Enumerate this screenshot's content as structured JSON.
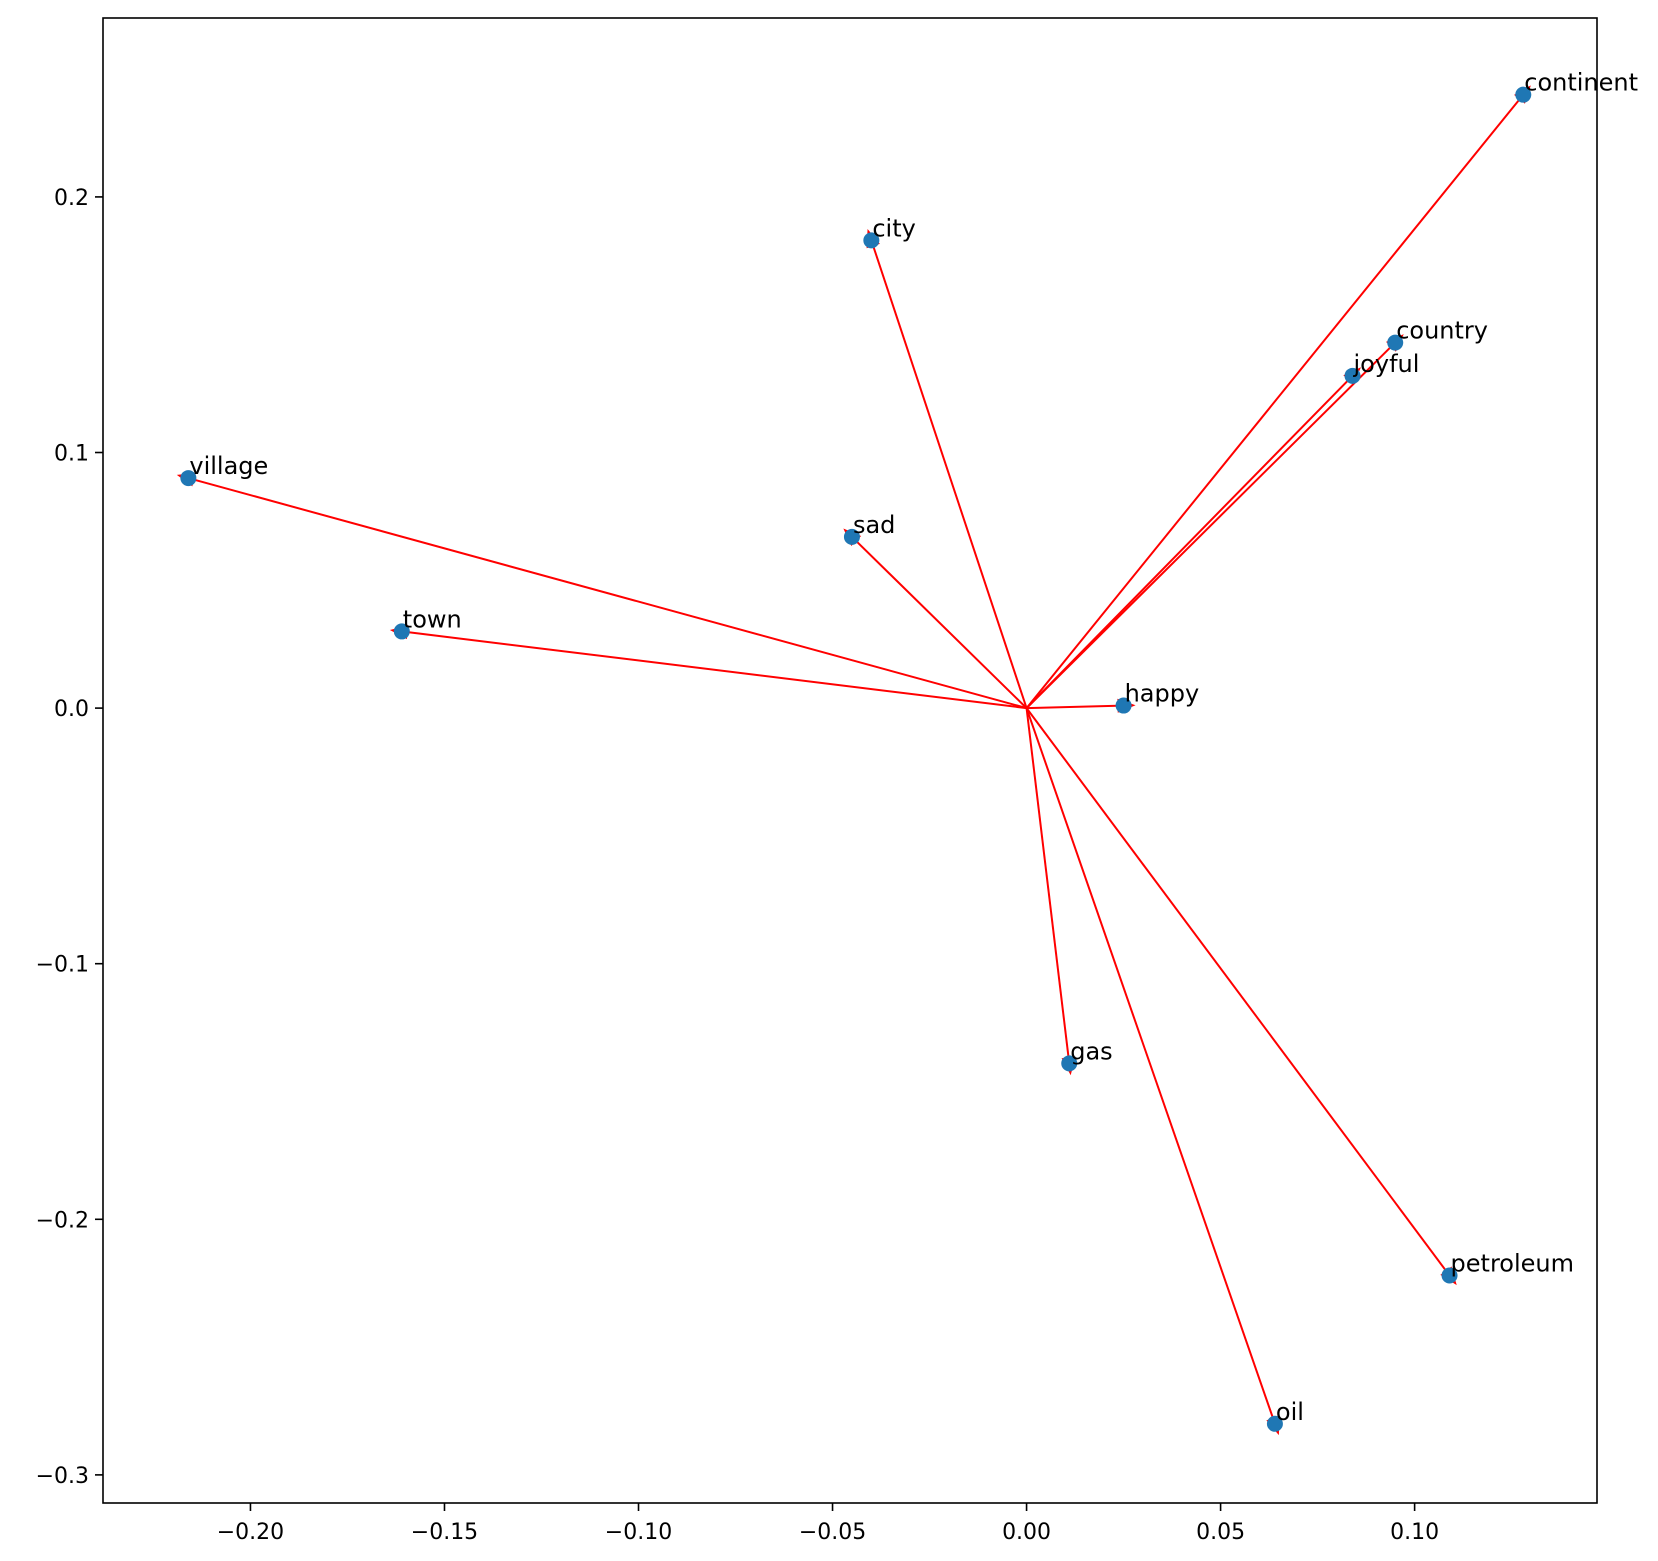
{
  "chart_data": {
    "type": "scatter",
    "title": "",
    "xlabel": "",
    "ylabel": "",
    "xlim": [
      -0.238,
      0.147
    ],
    "ylim": [
      -0.311,
      0.27
    ],
    "xticks": [
      -0.2,
      -0.15,
      -0.1,
      -0.05,
      0.0,
      0.05,
      0.1
    ],
    "xtick_labels": [
      "−0.20",
      "−0.15",
      "−0.10",
      "−0.05",
      "0.00",
      "0.05",
      "0.10"
    ],
    "yticks": [
      -0.3,
      -0.2,
      -0.1,
      0.0,
      0.1,
      0.2
    ],
    "ytick_labels": [
      "−0.3",
      "−0.2",
      "−0.1",
      "0.0",
      "0.1",
      "0.2"
    ],
    "grid": false,
    "arrow_origin": [
      0,
      0
    ],
    "colors": {
      "point": "#1f77b4",
      "arrow": "#ff0000",
      "axes": "#000000"
    },
    "points": [
      {
        "label": "continent",
        "x": 0.128,
        "y": 0.24
      },
      {
        "label": "city",
        "x": -0.04,
        "y": 0.183
      },
      {
        "label": "country",
        "x": 0.095,
        "y": 0.143
      },
      {
        "label": "joyful",
        "x": 0.084,
        "y": 0.13
      },
      {
        "label": "village",
        "x": -0.216,
        "y": 0.09
      },
      {
        "label": "sad",
        "x": -0.045,
        "y": 0.067
      },
      {
        "label": "town",
        "x": -0.161,
        "y": 0.03
      },
      {
        "label": "happy",
        "x": 0.025,
        "y": 0.001
      },
      {
        "label": "gas",
        "x": 0.011,
        "y": -0.139
      },
      {
        "label": "petroleum",
        "x": 0.109,
        "y": -0.222
      },
      {
        "label": "oil",
        "x": 0.064,
        "y": -0.28
      }
    ]
  }
}
